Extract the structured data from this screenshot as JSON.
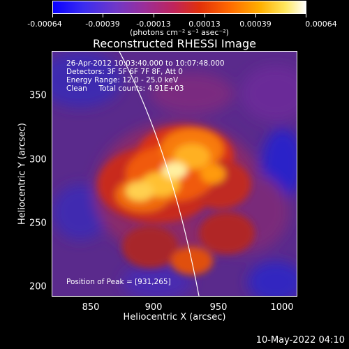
{
  "colorbar": {
    "tick_labels": [
      "-0.00064",
      "-0.00039",
      "-0.00013",
      "0.00013",
      "0.00039",
      "0.00064"
    ],
    "units_label": "(photons cm⁻² s⁻¹ asec⁻²)"
  },
  "plot": {
    "title": "Reconstructed RHESSI Image",
    "info_lines": [
      "26-Apr-2012 10:03:40.000 to 10:07:48.000",
      "Detectors: 3F 5F 6F 7F 8F, Att 0",
      "Energy Range: 12.0 - 25.0 keV",
      "Clean     Total counts: 4.91E+03"
    ],
    "peak_label": "Position of Peak = [931,265]",
    "xlabel": "Heliocentric X (arcsec)",
    "ylabel": "Heliocentric Y (arcsec)",
    "x_ticks": [
      "850",
      "900",
      "950",
      "1000"
    ],
    "y_ticks": [
      "350",
      "300",
      "250",
      "200"
    ]
  },
  "timestamp": "10-May-2022 04:10"
}
